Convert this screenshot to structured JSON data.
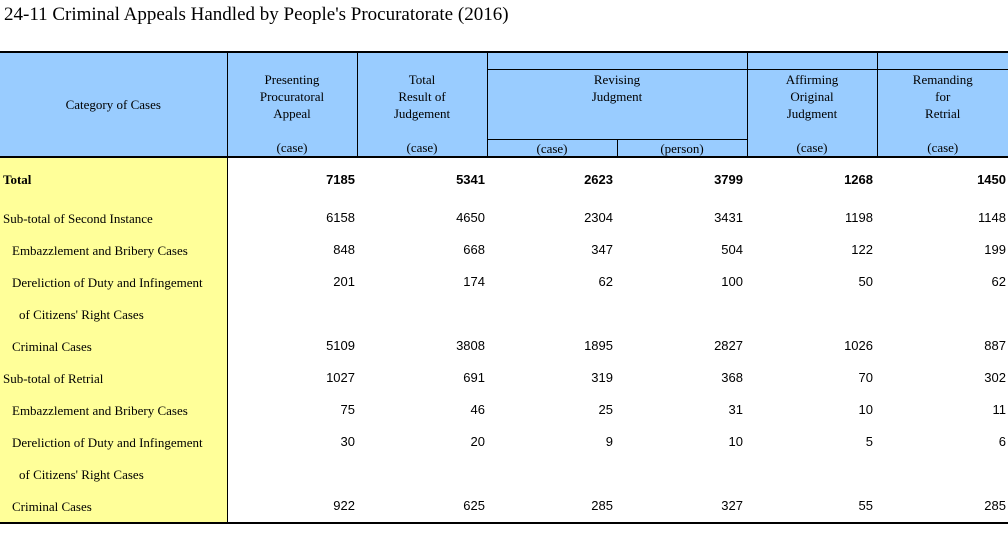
{
  "title": "24-11  Criminal Appeals Handled by People's Procuratorate (2016)",
  "header": {
    "category": "Category of Cases",
    "presenting": [
      "Presenting",
      "Procuratoral",
      "Appeal"
    ],
    "total": [
      "Total",
      "Result of",
      "Judgement"
    ],
    "revising": [
      "Revising",
      "Judgment"
    ],
    "affirming": [
      "Affirming",
      "Original",
      "Judgment"
    ],
    "remanding": [
      "Remanding",
      "for",
      "Retrial"
    ],
    "units": [
      "(case)",
      "(case)",
      "(case)",
      "(person)",
      "(case)",
      "(case)"
    ]
  },
  "rows": [
    {
      "label": "Total",
      "indent": 0,
      "bold": true,
      "values": [
        "7185",
        "5341",
        "2623",
        "3799",
        "1268",
        "1450"
      ]
    },
    {
      "label": "Sub-total of Second Instance",
      "indent": 0,
      "bold": false,
      "values": [
        "6158",
        "4650",
        "2304",
        "3431",
        "1198",
        "1148"
      ]
    },
    {
      "label": "Embazzlement and Bribery Cases",
      "indent": 1,
      "bold": false,
      "values": [
        "848",
        "668",
        "347",
        "504",
        "122",
        "199"
      ]
    },
    {
      "label": "Dereliction of Duty and Infingement",
      "indent": 1,
      "bold": false,
      "values": [
        "201",
        "174",
        "62",
        "100",
        "50",
        "62"
      ]
    },
    {
      "label": "of Citizens' Right Cases",
      "indent": 2,
      "bold": false,
      "values": [
        "",
        "",
        "",
        "",
        "",
        ""
      ]
    },
    {
      "label": "Criminal Cases",
      "indent": 1,
      "bold": false,
      "values": [
        "5109",
        "3808",
        "1895",
        "2827",
        "1026",
        "887"
      ]
    },
    {
      "label": "Sub-total of Retrial",
      "indent": 0,
      "bold": false,
      "values": [
        "1027",
        "691",
        "319",
        "368",
        "70",
        "302"
      ]
    },
    {
      "label": "Embazzlement and Bribery Cases",
      "indent": 1,
      "bold": false,
      "values": [
        "75",
        "46",
        "25",
        "31",
        "10",
        "11"
      ]
    },
    {
      "label": "Dereliction of Duty and Infingement",
      "indent": 1,
      "bold": false,
      "values": [
        "30",
        "20",
        "9",
        "10",
        "5",
        "6"
      ]
    },
    {
      "label": "of Citizens' Right Cases",
      "indent": 2,
      "bold": false,
      "values": [
        "",
        "",
        "",
        "",
        "",
        ""
      ]
    },
    {
      "label": "Criminal Cases",
      "indent": 1,
      "bold": false,
      "values": [
        "922",
        "625",
        "285",
        "327",
        "55",
        "285"
      ]
    }
  ],
  "colors": {
    "header_bg": "#99ccff",
    "category_bg": "#ffff99"
  }
}
